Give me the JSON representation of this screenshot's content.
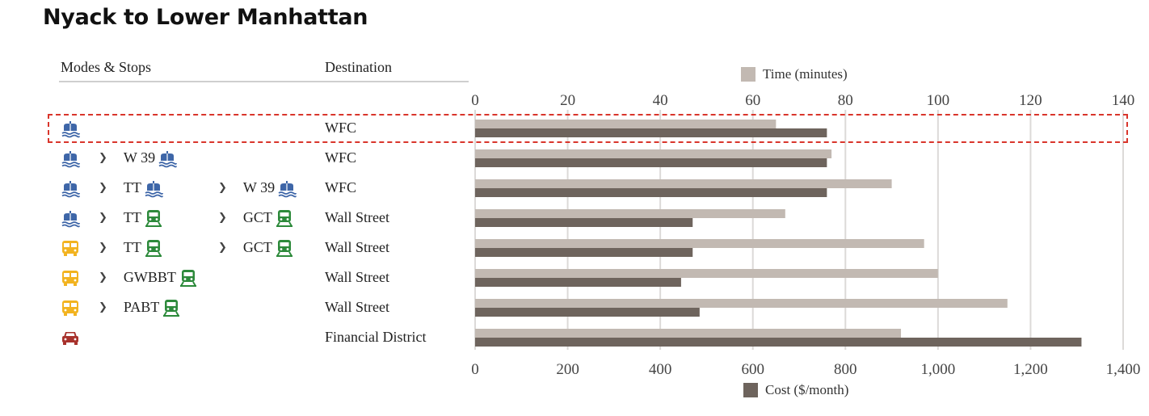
{
  "title": "Nyack to Lower Manhattan",
  "headers": {
    "modes": "Modes & Stops",
    "destination": "Destination"
  },
  "legend": {
    "time": "Time (minutes)",
    "cost": "Cost ($/month)"
  },
  "colors": {
    "time_bar": "#c2b9b2",
    "cost_bar": "#6e645d",
    "gridline": "#dcdad8",
    "ferry": "#3e66a8",
    "rail": "#2d8a3b",
    "bus": "#f2b320",
    "car": "#a8322c",
    "highlight": "#d9352b"
  },
  "rows": [
    {
      "segments": [
        {
          "stop": "",
          "icon": "ferry-icon"
        }
      ],
      "destination": "WFC",
      "highlighted": true
    },
    {
      "segments": [
        {
          "stop": "",
          "icon": "ferry-icon"
        },
        {
          "stop": "W 39",
          "icon": "ferry-icon"
        }
      ],
      "destination": "WFC"
    },
    {
      "segments": [
        {
          "stop": "",
          "icon": "ferry-icon"
        },
        {
          "stop": "TT",
          "icon": "ferry-icon"
        },
        {
          "stop": "W 39",
          "icon": "ferry-icon"
        }
      ],
      "destination": "WFC"
    },
    {
      "segments": [
        {
          "stop": "",
          "icon": "ferry-icon"
        },
        {
          "stop": "TT",
          "icon": "train-icon"
        },
        {
          "stop": "GCT",
          "icon": "train-icon"
        }
      ],
      "destination": "Wall Street"
    },
    {
      "segments": [
        {
          "stop": "",
          "icon": "bus-icon"
        },
        {
          "stop": "TT",
          "icon": "train-icon"
        },
        {
          "stop": "GCT",
          "icon": "train-icon"
        }
      ],
      "destination": "Wall Street"
    },
    {
      "segments": [
        {
          "stop": "",
          "icon": "bus-icon"
        },
        {
          "stop": "GWBBT",
          "icon": "train-icon"
        }
      ],
      "destination": "Wall Street"
    },
    {
      "segments": [
        {
          "stop": "",
          "icon": "bus-icon"
        },
        {
          "stop": "PABT",
          "icon": "train-icon"
        }
      ],
      "destination": "Wall Street"
    },
    {
      "segments": [
        {
          "stop": "",
          "icon": "car-icon"
        }
      ],
      "destination": "Financial District"
    }
  ],
  "chart_data": {
    "type": "bar",
    "orientation": "horizontal",
    "categories": [
      "WFC",
      "WFC",
      "WFC",
      "Wall Street",
      "Wall Street",
      "Wall Street",
      "Wall Street",
      "Financial District"
    ],
    "series": [
      {
        "name": "Time (minutes)",
        "axis": "top",
        "values": [
          65,
          77,
          90,
          67,
          97,
          100,
          115,
          92
        ]
      },
      {
        "name": "Cost ($/month)",
        "axis": "bottom",
        "values": [
          760,
          760,
          760,
          470,
          470,
          445,
          485,
          1310
        ]
      }
    ],
    "top_axis": {
      "label": "Time (minutes)",
      "range": [
        0,
        140
      ],
      "ticks": [
        "0",
        "20",
        "40",
        "60",
        "80",
        "100",
        "120",
        "140"
      ]
    },
    "bottom_axis": {
      "label": "Cost ($/month)",
      "range": [
        0,
        1400
      ],
      "ticks": [
        "0",
        "200",
        "400",
        "600",
        "800",
        "1,000",
        "1,200",
        "1,400"
      ]
    },
    "grid": true
  }
}
